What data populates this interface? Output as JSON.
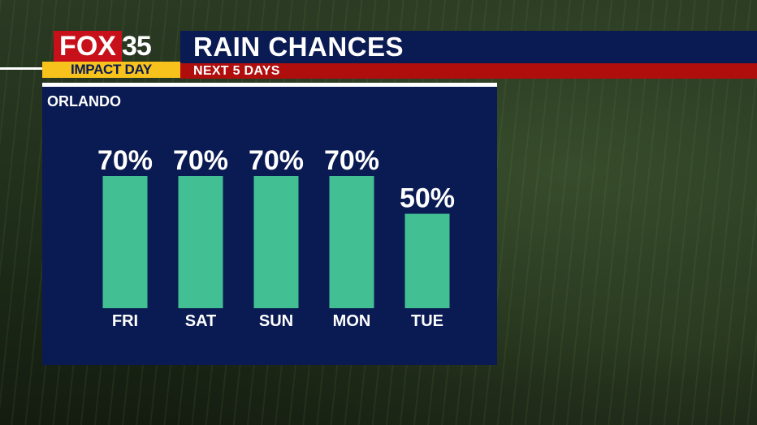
{
  "logo": {
    "brand": "FOX",
    "channel": "35",
    "badge": "IMPACT DAY"
  },
  "header": {
    "title": "RAIN CHANCES",
    "subtitle": "NEXT 5 DAYS"
  },
  "location": "ORLANDO",
  "colors": {
    "panel": "#0a1a52",
    "bar": "#43c093",
    "title_bar": "#0a1a52",
    "subtitle_bar": "#b00d0d",
    "badge": "#f7c21b",
    "logo_red": "#c8101a"
  },
  "chart_data": {
    "type": "bar",
    "title": "RAIN CHANCES",
    "subtitle": "NEXT 5 DAYS",
    "categories": [
      "FRI",
      "SAT",
      "SUN",
      "MON",
      "TUE"
    ],
    "values": [
      70,
      70,
      70,
      70,
      50
    ],
    "value_labels": [
      "70%",
      "70%",
      "70%",
      "70%",
      "50%"
    ],
    "unit": "%",
    "ylim": [
      0,
      100
    ],
    "grid": false,
    "legend": "none"
  }
}
